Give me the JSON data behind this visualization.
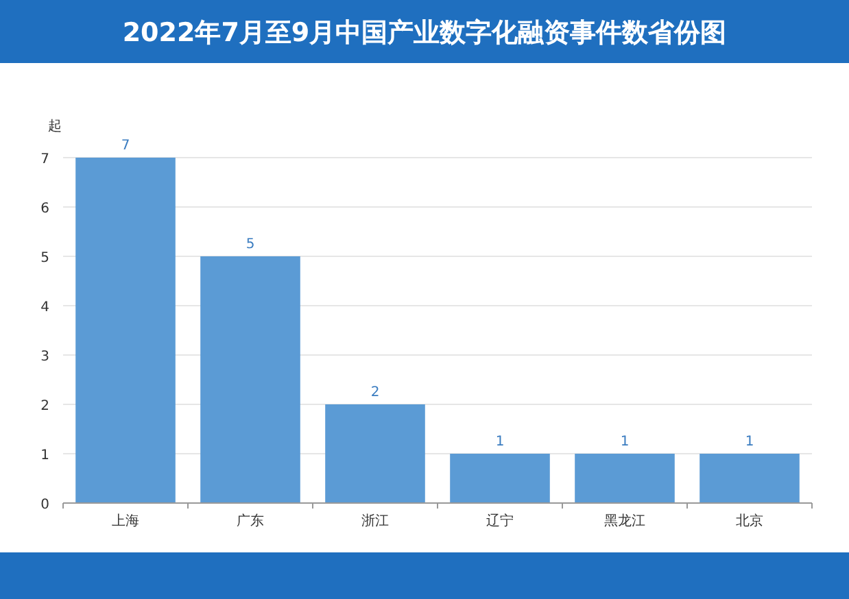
{
  "chart_data": {
    "type": "bar",
    "title": "2022年7月至9月中国产业数字化融资事件数省份图",
    "ylabel": "起",
    "categories": [
      "上海",
      "广东",
      "浙江",
      "辽宁",
      "黑龙江",
      "北京"
    ],
    "values": [
      7,
      5,
      2,
      1,
      1,
      1
    ],
    "color": "#5b9bd5",
    "ylim": [
      0,
      7
    ],
    "yticks": [
      0,
      1,
      2,
      3,
      4,
      5,
      6,
      7
    ],
    "grid": "y",
    "data_labels": true
  }
}
